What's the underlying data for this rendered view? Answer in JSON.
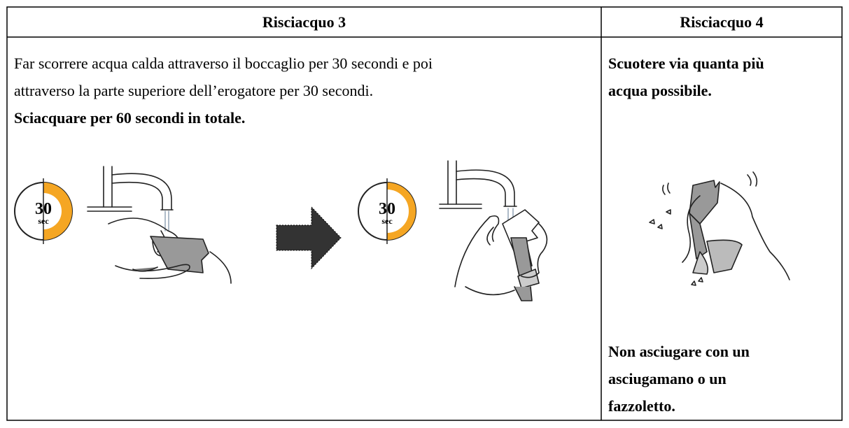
{
  "table": {
    "headers": [
      "Risciacquo 3",
      "Risciacquo 4"
    ],
    "step3": {
      "instruction_lines": [
        "Far scorrere acqua calda attraverso il boccaglio per 30 secondi e poi",
        "attraverso la parte superiore dell’erogatore per 30 secondi."
      ],
      "emphasis": "Sciacquare per 60 secondi in totale.",
      "timers": [
        {
          "number": "30",
          "unit": "sec"
        },
        {
          "number": "30",
          "unit": "sec"
        }
      ]
    },
    "step4": {
      "instruction_lines": [
        "Scuotere via quanta più",
        "acqua possibile."
      ],
      "warning_lines": [
        "Non asciugare con un",
        "asciugamano o un",
        "fazzoletto."
      ]
    }
  }
}
